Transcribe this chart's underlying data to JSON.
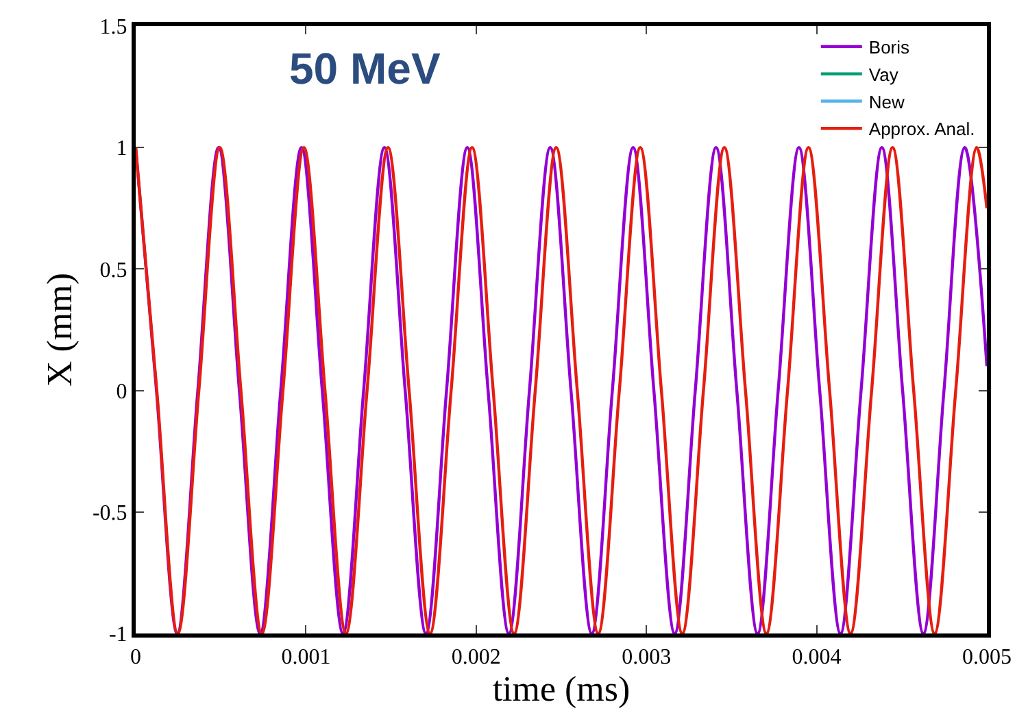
{
  "chart_data": {
    "type": "line",
    "title": "50 MeV",
    "xlabel": "time (ms)",
    "ylabel": "X (mm)",
    "xlim": [
      0,
      0.005
    ],
    "xticks": [
      0,
      0.001,
      0.002,
      0.003,
      0.004,
      0.005
    ],
    "ylim": [
      -1,
      1.5
    ],
    "yticks": [
      -1,
      -0.5,
      0,
      0.5,
      1,
      1.5
    ],
    "legend": "top right",
    "marker": "none",
    "line_style": "solid",
    "series": [
      {
        "name": "Boris",
        "color": "#9400d3",
        "x": [
          0,
          0.000122,
          0.000244,
          0.000365,
          0.000487,
          0.000609,
          0.000731,
          0.000852,
          0.000974,
          0.001096,
          0.001218,
          0.001339,
          0.001461,
          0.001583,
          0.001705,
          0.001826,
          0.001948,
          0.00207,
          0.002192,
          0.002313,
          0.002435,
          0.002557,
          0.002679,
          0.0028,
          0.002922,
          0.003044,
          0.003166,
          0.003287,
          0.003409,
          0.003531,
          0.003653,
          0.003774,
          0.003896,
          0.004018,
          0.00414,
          0.004261,
          0.004383,
          0.004505,
          0.004627,
          0.004748,
          0.00487,
          0.005
        ],
        "values": [
          1,
          0,
          -1,
          0,
          1,
          0,
          -1,
          0,
          1,
          0,
          -1,
          0,
          1,
          0,
          -1,
          0,
          1,
          0,
          -1,
          0,
          1,
          0,
          -1,
          0,
          1,
          0,
          -1,
          0,
          1,
          0,
          -1,
          0,
          1,
          0,
          -1,
          0,
          1,
          0,
          -1,
          0,
          1,
          0.1
        ]
      },
      {
        "name": "Vay",
        "color": "#009e73"
      },
      {
        "name": "New",
        "color": "#56b4e9"
      },
      {
        "name": "Approx. Anal.",
        "color": "#e51e10",
        "x": [
          0,
          0.000124,
          0.000247,
          0.000371,
          0.000494,
          0.000618,
          0.000741,
          0.000865,
          0.000988,
          0.001112,
          0.001235,
          0.001359,
          0.001482,
          0.001606,
          0.001729,
          0.001853,
          0.001976,
          0.0021,
          0.002223,
          0.002347,
          0.00247,
          0.002594,
          0.002717,
          0.002841,
          0.002964,
          0.003088,
          0.003211,
          0.003335,
          0.003458,
          0.003582,
          0.003705,
          0.003829,
          0.003952,
          0.004076,
          0.004199,
          0.004323,
          0.004446,
          0.00457,
          0.004693,
          0.004817,
          0.00494,
          0.005
        ],
        "values": [
          1,
          0,
          -1,
          0,
          1,
          0,
          -1,
          0,
          1,
          0,
          -1,
          0,
          1,
          0,
          -1,
          0,
          1,
          0,
          -1,
          0,
          1,
          0,
          -1,
          0,
          1,
          0,
          -1,
          0,
          1,
          0,
          -1,
          0,
          1,
          0,
          -1,
          0,
          1,
          0,
          -1,
          0,
          1,
          0.75
        ]
      }
    ]
  }
}
